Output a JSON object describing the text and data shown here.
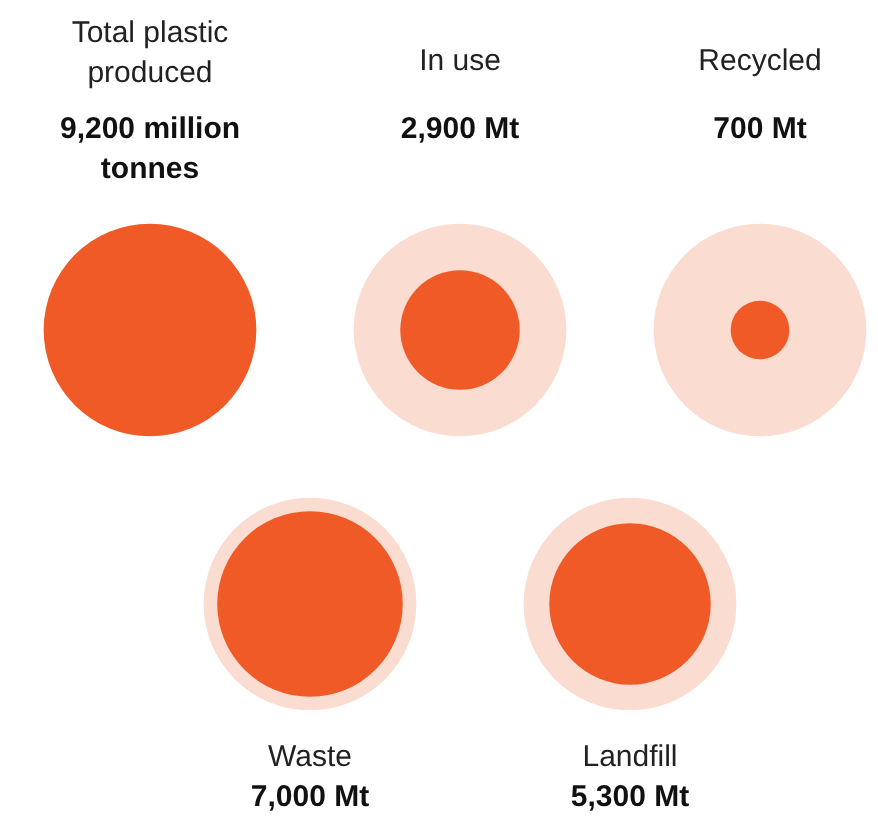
{
  "chart_data": {
    "type": "other",
    "categories": [
      "Total plastic produced",
      "In use",
      "Recycled",
      "Waste",
      "Landfill"
    ],
    "values": [
      9200,
      2900,
      700,
      7000,
      5300
    ],
    "value_labels": [
      "9,200 million tonnes",
      "2,900 Mt",
      "700 Mt",
      "7,000 Mt",
      "5,300 Mt"
    ],
    "colors": [
      "#ef5a27",
      "#ef5a27",
      "#ef5a27",
      "#ef5a27",
      "#ef5a27"
    ],
    "color": "#fbdcd1"
  }
}
